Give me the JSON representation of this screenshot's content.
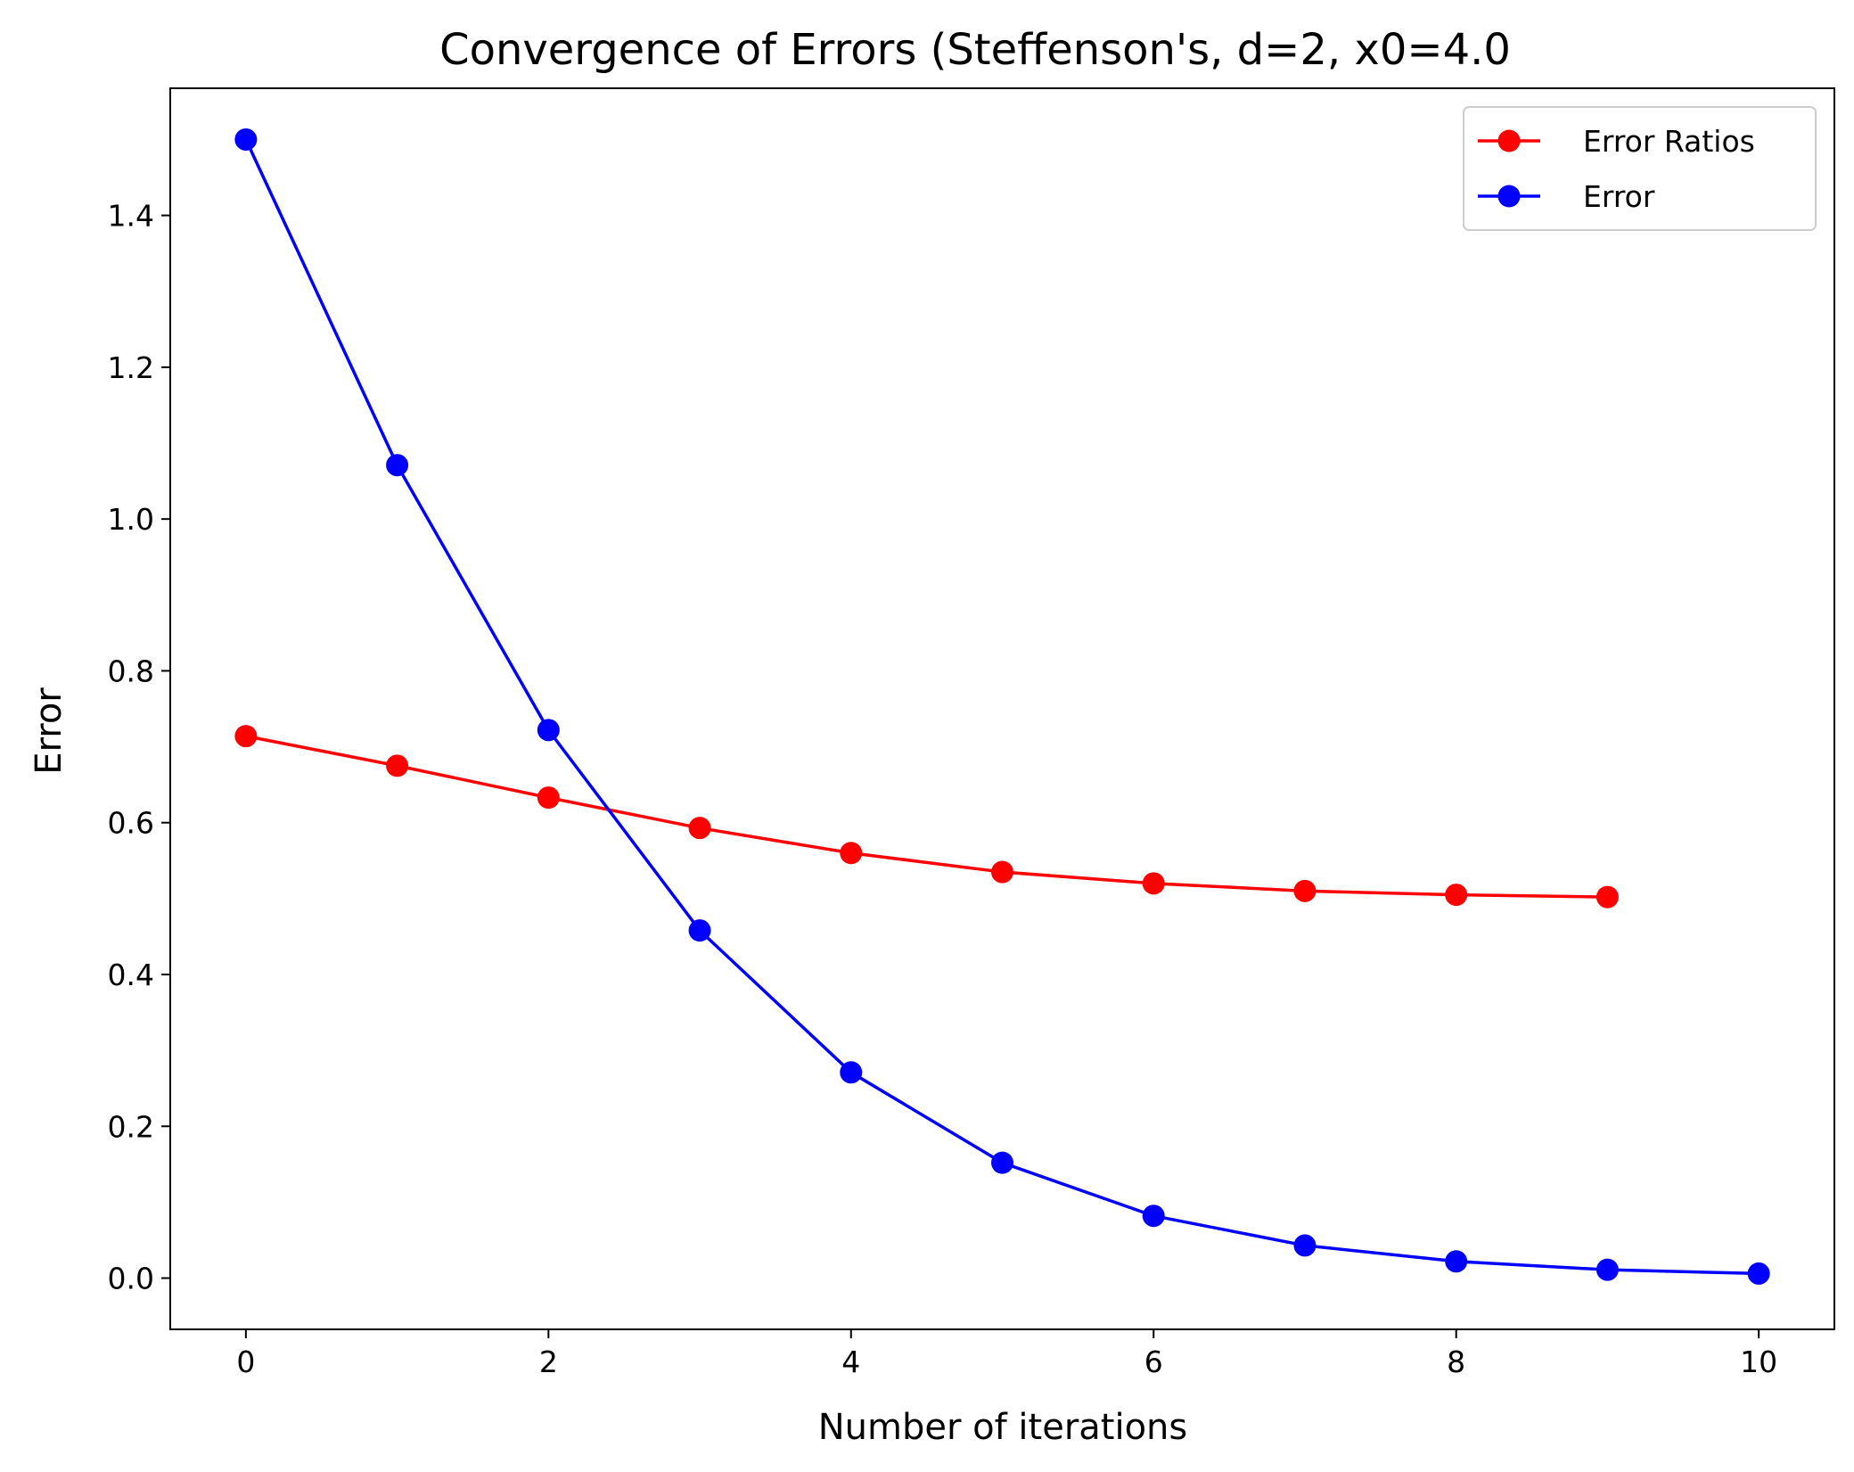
{
  "chart_data": {
    "type": "line",
    "title": "Convergence of Errors (Steffenson's, d=2, x0=4.0",
    "xlabel": "Number of iterations",
    "ylabel": "Error",
    "xlim": [
      -0.5,
      10.5
    ],
    "ylim": [
      -0.0675,
      1.5675
    ],
    "xticks": [
      0,
      2,
      4,
      6,
      8,
      10
    ],
    "xtick_labels": [
      "0",
      "2",
      "4",
      "6",
      "8",
      "10"
    ],
    "yticks": [
      0.0,
      0.2,
      0.4,
      0.6,
      0.8,
      1.0,
      1.2,
      1.4
    ],
    "ytick_labels": [
      "0.0",
      "0.2",
      "0.4",
      "0.6",
      "0.8",
      "1.0",
      "1.2",
      "1.4"
    ],
    "grid": false,
    "legend_position": "top-right",
    "series": [
      {
        "name": "Error Ratios",
        "color": "#ff0000",
        "marker": "circle",
        "x": [
          0,
          1,
          2,
          3,
          4,
          5,
          6,
          7,
          8,
          9
        ],
        "y": [
          0.714,
          0.675,
          0.633,
          0.593,
          0.56,
          0.535,
          0.52,
          0.51,
          0.505,
          0.502
        ]
      },
      {
        "name": "Error",
        "color": "#0000ff",
        "marker": "circle",
        "x": [
          0,
          1,
          2,
          3,
          4,
          5,
          6,
          7,
          8,
          9,
          10
        ],
        "y": [
          1.5,
          1.071,
          0.722,
          0.458,
          0.271,
          0.152,
          0.082,
          0.043,
          0.022,
          0.011,
          0.006
        ]
      }
    ]
  }
}
